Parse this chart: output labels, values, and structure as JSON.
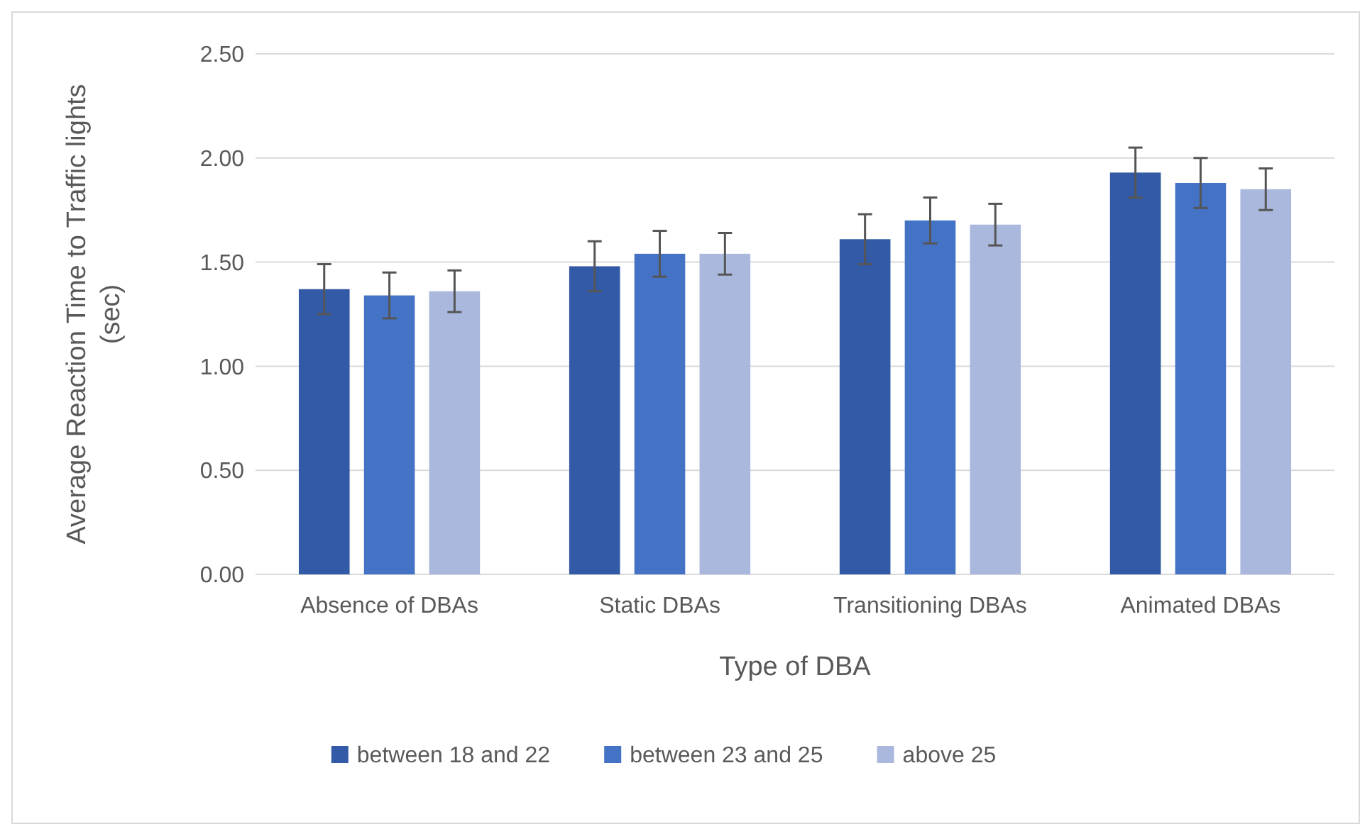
{
  "chart_data": {
    "type": "bar",
    "xlabel": "Type of DBA",
    "ylabel": "Average Reaction Time to Traffic lights (sec)",
    "categories": [
      "Absence of DBAs",
      "Static DBAs",
      "Transitioning DBAs",
      "Animated DBAs"
    ],
    "series": [
      {
        "name": "between 18 and 22",
        "color": "#335aa6",
        "values": [
          1.37,
          1.48,
          1.61,
          1.93
        ],
        "errors": [
          0.12,
          0.12,
          0.12,
          0.12
        ]
      },
      {
        "name": "between 23 and 25",
        "color": "#4472c4",
        "values": [
          1.34,
          1.54,
          1.7,
          1.88
        ],
        "errors": [
          0.11,
          0.11,
          0.11,
          0.12
        ]
      },
      {
        "name": "above 25",
        "color": "#a9b8dc",
        "values": [
          1.36,
          1.54,
          1.68,
          1.85
        ],
        "errors": [
          0.1,
          0.1,
          0.1,
          0.1
        ]
      }
    ],
    "ylim": [
      0,
      2.5
    ],
    "yticks": [
      {
        "value": 0,
        "label": "0.00"
      },
      {
        "value": 0.5,
        "label": "0.50"
      },
      {
        "value": 1,
        "label": "1.00"
      },
      {
        "value": 1.5,
        "label": "1.50"
      },
      {
        "value": 2,
        "label": "2.00"
      },
      {
        "value": 2.5,
        "label": "2.50"
      }
    ],
    "grid": "y",
    "legend": "bottom"
  }
}
